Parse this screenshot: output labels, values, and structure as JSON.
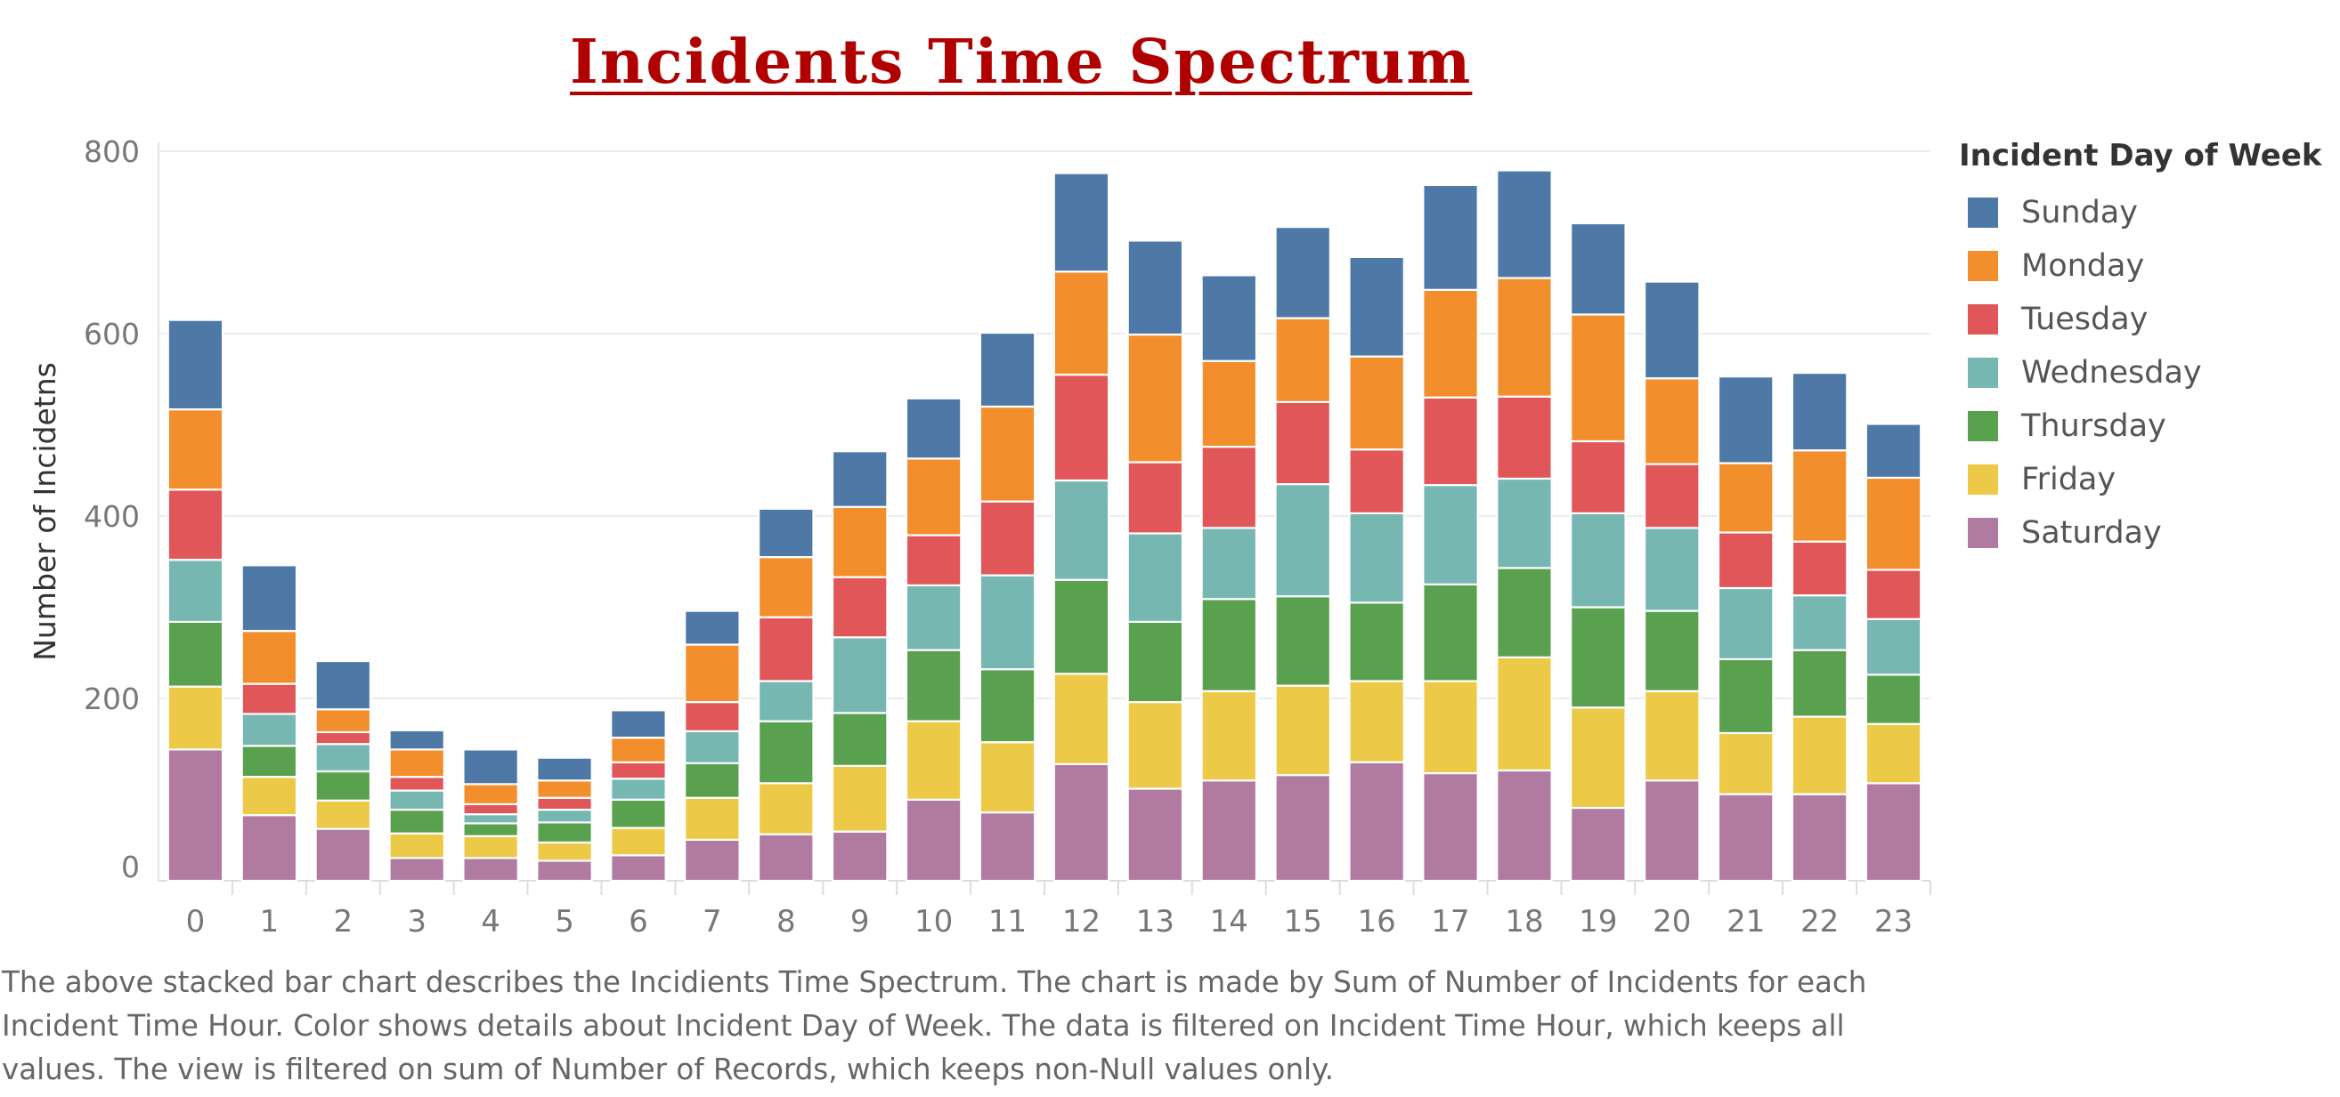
{
  "title": "Incidents Time Spectrum",
  "legend": {
    "title": "Incident Day of Week",
    "items": [
      {
        "label": "Sunday",
        "color": "#4e79a7"
      },
      {
        "label": "Monday",
        "color": "#f28e2b"
      },
      {
        "label": "Tuesday",
        "color": "#e15759"
      },
      {
        "label": "Wednesday",
        "color": "#76b7b2"
      },
      {
        "label": "Thursday",
        "color": "#59a14f"
      },
      {
        "label": "Friday",
        "color": "#edc948"
      },
      {
        "label": "Saturday",
        "color": "#b07aa1"
      }
    ]
  },
  "caption": "The above stacked bar chart describes the Incidients Time Spectrum. The chart is made by Sum of Number of Incidents for each Incident Time Hour.  Color shows details about Incident Day of Week. The data is filtered on Incident Time Hour, which keeps all values. The view is filtered on sum of Number of Records, which keeps non-Null values only.",
  "chart_data": {
    "type": "bar",
    "stacked": true,
    "title": "Incidents Time Spectrum",
    "xlabel": "",
    "ylabel": "Number of Incidetns",
    "ylim": [
      0,
      800
    ],
    "yticks": [
      0,
      200,
      400,
      600,
      800
    ],
    "grid": true,
    "legend_position": "right",
    "categories": [
      "0",
      "1",
      "2",
      "3",
      "4",
      "5",
      "6",
      "7",
      "8",
      "9",
      "10",
      "11",
      "12",
      "13",
      "14",
      "15",
      "16",
      "17",
      "18",
      "19",
      "20",
      "21",
      "22",
      "23"
    ],
    "series": [
      {
        "name": "Saturday",
        "color": "#b07aa1",
        "values": [
          144,
          72,
          57,
          25,
          25,
          22,
          28,
          45,
          51,
          54,
          89,
          75,
          128,
          101,
          110,
          116,
          130,
          118,
          121,
          80,
          110,
          95,
          95,
          107
        ]
      },
      {
        "name": "Friday",
        "color": "#edc948",
        "values": [
          69,
          42,
          31,
          27,
          24,
          20,
          30,
          46,
          56,
          72,
          86,
          77,
          99,
          95,
          98,
          98,
          89,
          101,
          124,
          110,
          98,
          67,
          85,
          65
        ]
      },
      {
        "name": "Thursday",
        "color": "#59a14f",
        "values": [
          71,
          34,
          32,
          26,
          14,
          22,
          31,
          38,
          68,
          58,
          78,
          80,
          103,
          88,
          101,
          98,
          86,
          106,
          98,
          110,
          88,
          81,
          73,
          54
        ]
      },
      {
        "name": "Wednesday",
        "color": "#76b7b2",
        "values": [
          68,
          35,
          30,
          21,
          10,
          14,
          23,
          35,
          44,
          83,
          71,
          103,
          109,
          97,
          78,
          123,
          98,
          109,
          98,
          103,
          91,
          78,
          60,
          61
        ]
      },
      {
        "name": "Tuesday",
        "color": "#e15759",
        "values": [
          77,
          33,
          13,
          15,
          11,
          13,
          18,
          32,
          70,
          66,
          55,
          81,
          116,
          78,
          89,
          90,
          70,
          96,
          90,
          79,
          70,
          61,
          59,
          54
        ]
      },
      {
        "name": "Monday",
        "color": "#f28e2b",
        "values": [
          88,
          58,
          25,
          30,
          22,
          19,
          27,
          63,
          66,
          77,
          84,
          104,
          113,
          140,
          94,
          92,
          102,
          118,
          130,
          139,
          94,
          76,
          100,
          101
        ]
      },
      {
        "name": "Sunday",
        "color": "#4e79a7",
        "values": [
          98,
          72,
          53,
          21,
          38,
          25,
          30,
          37,
          53,
          61,
          66,
          81,
          108,
          103,
          94,
          100,
          109,
          115,
          118,
          100,
          106,
          95,
          85,
          59
        ]
      }
    ]
  }
}
